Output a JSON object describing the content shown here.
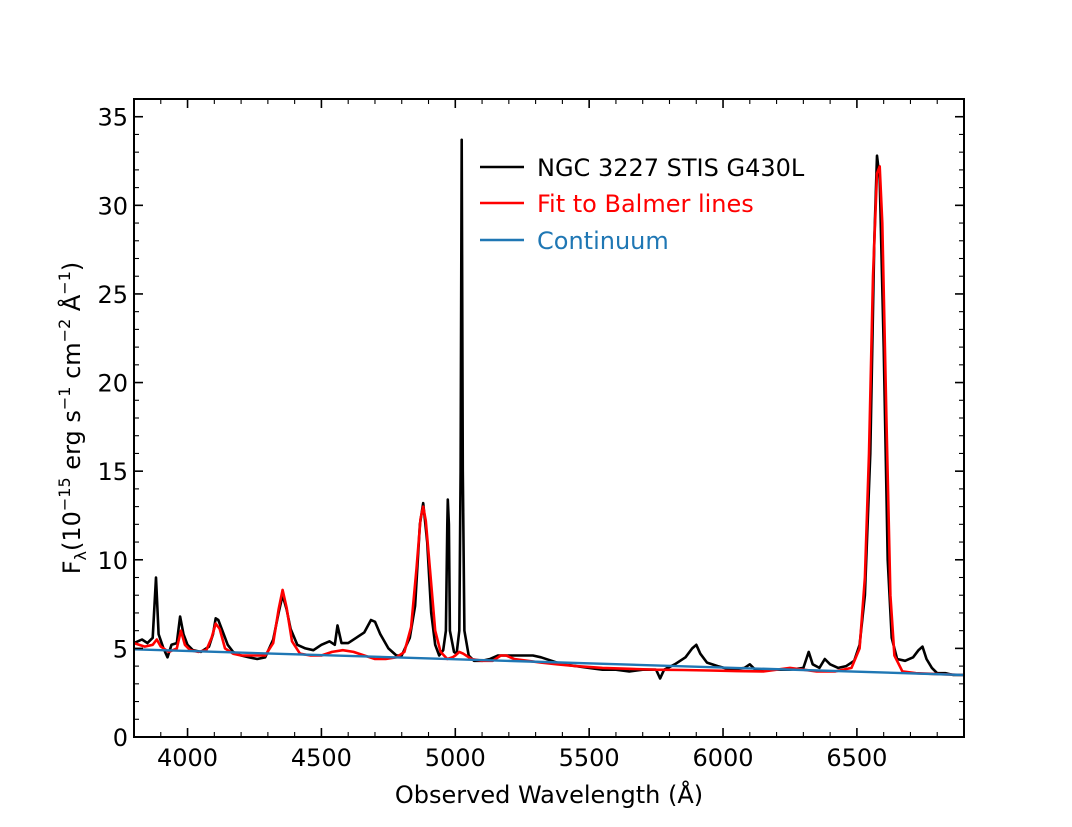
{
  "chart_data": {
    "type": "line",
    "xlabel": "Observed Wavelength (Å)",
    "ylabel": {
      "base": "F",
      "base_sub": "λ",
      "p1": "(10",
      "exp1": "−15",
      "p2": " erg s",
      "exp2": "−1",
      "p3": " cm",
      "exp3": "−2",
      "p4": " Å",
      "exp4": "−1",
      "p5": ")"
    },
    "xlim": [
      3800,
      6900
    ],
    "ylim": [
      0,
      36
    ],
    "xticks": [
      4000,
      4500,
      5000,
      5500,
      6000,
      6500
    ],
    "xtick_labels": [
      "4000",
      "4500",
      "5000",
      "5500",
      "6000",
      "6500"
    ],
    "yticks": [
      0,
      5,
      10,
      15,
      20,
      25,
      30,
      35
    ],
    "ytick_labels": [
      "0",
      "5",
      "10",
      "15",
      "20",
      "25",
      "30",
      "35"
    ],
    "legend_position": "upper-center",
    "series": [
      {
        "name": "NGC 3227 STIS G430L",
        "color": "#000000",
        "points": [
          [
            3800,
            5.3
          ],
          [
            3830,
            5.5
          ],
          [
            3850,
            5.3
          ],
          [
            3870,
            5.6
          ],
          [
            3882,
            9.0
          ],
          [
            3892,
            5.8
          ],
          [
            3910,
            5.0
          ],
          [
            3925,
            4.5
          ],
          [
            3940,
            5.2
          ],
          [
            3960,
            5.3
          ],
          [
            3972,
            6.8
          ],
          [
            3985,
            5.8
          ],
          [
            4000,
            5.2
          ],
          [
            4020,
            4.9
          ],
          [
            4050,
            4.8
          ],
          [
            4080,
            5.1
          ],
          [
            4095,
            5.8
          ],
          [
            4105,
            6.7
          ],
          [
            4115,
            6.6
          ],
          [
            4130,
            6.0
          ],
          [
            4150,
            5.2
          ],
          [
            4170,
            4.8
          ],
          [
            4200,
            4.6
          ],
          [
            4230,
            4.5
          ],
          [
            4260,
            4.4
          ],
          [
            4290,
            4.5
          ],
          [
            4320,
            5.5
          ],
          [
            4340,
            7.0
          ],
          [
            4355,
            8.0
          ],
          [
            4370,
            7.2
          ],
          [
            4385,
            6.1
          ],
          [
            4410,
            5.2
          ],
          [
            4440,
            5.0
          ],
          [
            4470,
            4.9
          ],
          [
            4500,
            5.2
          ],
          [
            4530,
            5.4
          ],
          [
            4550,
            5.2
          ],
          [
            4560,
            6.3
          ],
          [
            4575,
            5.3
          ],
          [
            4600,
            5.3
          ],
          [
            4630,
            5.6
          ],
          [
            4660,
            5.9
          ],
          [
            4685,
            6.6
          ],
          [
            4700,
            6.5
          ],
          [
            4720,
            5.8
          ],
          [
            4750,
            5.0
          ],
          [
            4780,
            4.6
          ],
          [
            4800,
            4.6
          ],
          [
            4830,
            5.6
          ],
          [
            4850,
            7.4
          ],
          [
            4868,
            12.0
          ],
          [
            4880,
            13.2
          ],
          [
            4895,
            11.0
          ],
          [
            4910,
            7.0
          ],
          [
            4925,
            5.2
          ],
          [
            4940,
            4.6
          ],
          [
            4955,
            4.9
          ],
          [
            4965,
            6.0
          ],
          [
            4970,
            12.0
          ],
          [
            4972,
            13.4
          ],
          [
            4976,
            12.0
          ],
          [
            4980,
            6.0
          ],
          [
            4995,
            4.8
          ],
          [
            5005,
            4.7
          ],
          [
            5015,
            6.0
          ],
          [
            5020,
            15.0
          ],
          [
            5024,
            33.7
          ],
          [
            5028,
            15.0
          ],
          [
            5034,
            6.0
          ],
          [
            5050,
            4.6
          ],
          [
            5070,
            4.3
          ],
          [
            5100,
            4.3
          ],
          [
            5130,
            4.4
          ],
          [
            5160,
            4.6
          ],
          [
            5190,
            4.6
          ],
          [
            5220,
            4.6
          ],
          [
            5260,
            4.6
          ],
          [
            5290,
            4.6
          ],
          [
            5320,
            4.5
          ],
          [
            5360,
            4.3
          ],
          [
            5400,
            4.1
          ],
          [
            5450,
            4.0
          ],
          [
            5500,
            3.9
          ],
          [
            5550,
            3.8
          ],
          [
            5600,
            3.8
          ],
          [
            5650,
            3.7
          ],
          [
            5700,
            3.8
          ],
          [
            5750,
            3.8
          ],
          [
            5765,
            3.3
          ],
          [
            5780,
            3.8
          ],
          [
            5820,
            4.1
          ],
          [
            5860,
            4.5
          ],
          [
            5885,
            5.0
          ],
          [
            5900,
            5.2
          ],
          [
            5915,
            4.7
          ],
          [
            5940,
            4.2
          ],
          [
            5980,
            4.0
          ],
          [
            6030,
            3.8
          ],
          [
            6080,
            3.9
          ],
          [
            6100,
            4.1
          ],
          [
            6120,
            3.8
          ],
          [
            6160,
            3.8
          ],
          [
            6200,
            3.8
          ],
          [
            6250,
            3.8
          ],
          [
            6300,
            3.9
          ],
          [
            6320,
            4.8
          ],
          [
            6335,
            4.1
          ],
          [
            6360,
            3.9
          ],
          [
            6380,
            4.4
          ],
          [
            6400,
            4.1
          ],
          [
            6430,
            3.9
          ],
          [
            6460,
            4.0
          ],
          [
            6490,
            4.3
          ],
          [
            6510,
            5.2
          ],
          [
            6530,
            8.0
          ],
          [
            6550,
            16.0
          ],
          [
            6565,
            28.0
          ],
          [
            6575,
            32.8
          ],
          [
            6585,
            31.5
          ],
          [
            6600,
            22.0
          ],
          [
            6615,
            10.0
          ],
          [
            6630,
            5.6
          ],
          [
            6650,
            4.4
          ],
          [
            6680,
            4.3
          ],
          [
            6710,
            4.5
          ],
          [
            6730,
            4.9
          ],
          [
            6745,
            5.1
          ],
          [
            6760,
            4.4
          ],
          [
            6780,
            3.9
          ],
          [
            6800,
            3.6
          ],
          [
            6830,
            3.6
          ],
          [
            6860,
            3.5
          ],
          [
            6900,
            3.5
          ]
        ]
      },
      {
        "name": "Fit to Balmer lines",
        "color": "#ff0000",
        "points": [
          [
            3800,
            5.3
          ],
          [
            3840,
            5.1
          ],
          [
            3870,
            5.2
          ],
          [
            3885,
            5.5
          ],
          [
            3900,
            5.1
          ],
          [
            3930,
            4.8
          ],
          [
            3960,
            5.0
          ],
          [
            3975,
            6.0
          ],
          [
            3990,
            5.2
          ],
          [
            4010,
            4.9
          ],
          [
            4040,
            4.8
          ],
          [
            4070,
            4.9
          ],
          [
            4090,
            5.6
          ],
          [
            4105,
            6.4
          ],
          [
            4120,
            6.1
          ],
          [
            4140,
            5.0
          ],
          [
            4170,
            4.7
          ],
          [
            4200,
            4.6
          ],
          [
            4250,
            4.6
          ],
          [
            4290,
            4.6
          ],
          [
            4320,
            5.3
          ],
          [
            4340,
            7.2
          ],
          [
            4355,
            8.3
          ],
          [
            4370,
            7.3
          ],
          [
            4390,
            5.4
          ],
          [
            4420,
            4.7
          ],
          [
            4460,
            4.6
          ],
          [
            4500,
            4.6
          ],
          [
            4540,
            4.8
          ],
          [
            4580,
            4.9
          ],
          [
            4620,
            4.8
          ],
          [
            4660,
            4.6
          ],
          [
            4700,
            4.4
          ],
          [
            4740,
            4.4
          ],
          [
            4780,
            4.5
          ],
          [
            4810,
            4.8
          ],
          [
            4835,
            6.2
          ],
          [
            4855,
            9.5
          ],
          [
            4870,
            12.3
          ],
          [
            4880,
            13.0
          ],
          [
            4890,
            12.2
          ],
          [
            4905,
            9.5
          ],
          [
            4925,
            6.0
          ],
          [
            4945,
            4.8
          ],
          [
            4970,
            4.4
          ],
          [
            4990,
            4.5
          ],
          [
            5000,
            4.6
          ],
          [
            5015,
            4.8
          ],
          [
            5030,
            4.7
          ],
          [
            5060,
            4.4
          ],
          [
            5100,
            4.3
          ],
          [
            5140,
            4.3
          ],
          [
            5170,
            4.6
          ],
          [
            5190,
            4.6
          ],
          [
            5220,
            4.4
          ],
          [
            5270,
            4.3
          ],
          [
            5320,
            4.2
          ],
          [
            5380,
            4.1
          ],
          [
            5450,
            4.0
          ],
          [
            5550,
            3.9
          ],
          [
            5650,
            3.85
          ],
          [
            5750,
            3.8
          ],
          [
            5850,
            3.78
          ],
          [
            5950,
            3.75
          ],
          [
            6050,
            3.72
          ],
          [
            6150,
            3.7
          ],
          [
            6250,
            3.9
          ],
          [
            6300,
            3.8
          ],
          [
            6350,
            3.7
          ],
          [
            6420,
            3.7
          ],
          [
            6480,
            3.9
          ],
          [
            6510,
            5.0
          ],
          [
            6530,
            9.0
          ],
          [
            6545,
            16.0
          ],
          [
            6560,
            26.0
          ],
          [
            6575,
            31.8
          ],
          [
            6585,
            32.2
          ],
          [
            6595,
            29.0
          ],
          [
            6610,
            18.0
          ],
          [
            6625,
            8.0
          ],
          [
            6640,
            4.6
          ],
          [
            6670,
            3.7
          ],
          [
            6720,
            3.6
          ],
          [
            6800,
            3.55
          ],
          [
            6900,
            3.5
          ]
        ]
      },
      {
        "name": "Continuum",
        "color": "#1f77b4",
        "points": [
          [
            3800,
            4.95
          ],
          [
            6900,
            3.5
          ]
        ]
      }
    ]
  }
}
